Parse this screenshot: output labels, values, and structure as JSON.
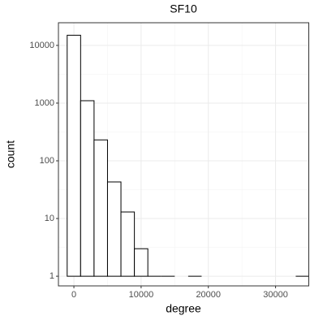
{
  "chart_data": {
    "type": "histogram",
    "title": "SF10",
    "x_label": "degree",
    "y_label": "count",
    "bins": [
      -1000,
      1000,
      3000,
      5000,
      7000,
      9000,
      11000,
      13000,
      15000,
      17000,
      19000,
      21000,
      23000,
      25000,
      27000,
      29000,
      31000,
      33000,
      35000
    ],
    "values": [
      15000,
      1100,
      230,
      43,
      13,
      3,
      1,
      1,
      0,
      1,
      0,
      0,
      0,
      0,
      0,
      0,
      0,
      1
    ],
    "color": "#ffffff",
    "edge_color": "#000000",
    "xlim": [
      -2300,
      35000
    ],
    "xticks": [
      0,
      10000,
      20000,
      30000
    ],
    "ylim": [
      0.68,
      24700
    ],
    "yticks": [
      1,
      10,
      100,
      1000,
      10000
    ],
    "y_log": true,
    "grid": true
  }
}
